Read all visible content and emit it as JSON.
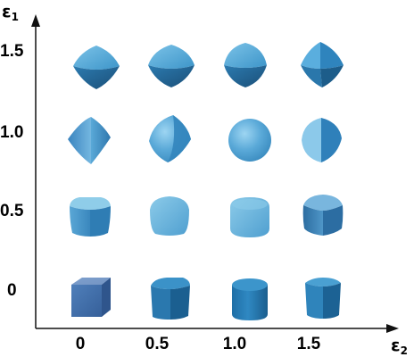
{
  "y_axis": {
    "symbol": "ε",
    "subscript": "1"
  },
  "x_axis": {
    "symbol": "ε",
    "subscript": "2"
  },
  "y_ticks": [
    "1.5",
    "1.0",
    "0.5",
    "0"
  ],
  "x_ticks": [
    "0",
    "0.5",
    "1.0",
    "1.5"
  ],
  "colors": {
    "axis": "#111111",
    "shape_light": "#7cc3e8",
    "shape_mid": "#3d95c9",
    "shape_dark": "#1e5f8c",
    "cube_front": "#4a78b4",
    "cube_top": "#7ea4d0"
  },
  "grid": [
    {
      "e1": "1.5",
      "e2": "0",
      "shape": "diamond-cushion"
    },
    {
      "e1": "1.5",
      "e2": "0.5",
      "shape": "diamond-cushion"
    },
    {
      "e1": "1.5",
      "e2": "1.0",
      "shape": "diamond-cushion"
    },
    {
      "e1": "1.5",
      "e2": "1.5",
      "shape": "diamond-cushion"
    },
    {
      "e1": "1.0",
      "e2": "0",
      "shape": "double-cone"
    },
    {
      "e1": "1.0",
      "e2": "0.5",
      "shape": "rounded-double-cone"
    },
    {
      "e1": "1.0",
      "e2": "1.0",
      "shape": "sphere"
    },
    {
      "e1": "1.0",
      "e2": "1.5",
      "shape": "pinched-double-cone"
    },
    {
      "e1": "0.5",
      "e2": "0",
      "shape": "rounded-cube"
    },
    {
      "e1": "0.5",
      "e2": "0.5",
      "shape": "rounded-box"
    },
    {
      "e1": "0.5",
      "e2": "1.0",
      "shape": "rounded-cylinder"
    },
    {
      "e1": "0.5",
      "e2": "1.5",
      "shape": "rounded-cushion-box"
    },
    {
      "e1": "0",
      "e2": "0",
      "shape": "cube"
    },
    {
      "e1": "0",
      "e2": "0.5",
      "shape": "rounded-prism"
    },
    {
      "e1": "0",
      "e2": "1.0",
      "shape": "cylinder"
    },
    {
      "e1": "0",
      "e2": "1.5",
      "shape": "pinched-prism"
    }
  ]
}
